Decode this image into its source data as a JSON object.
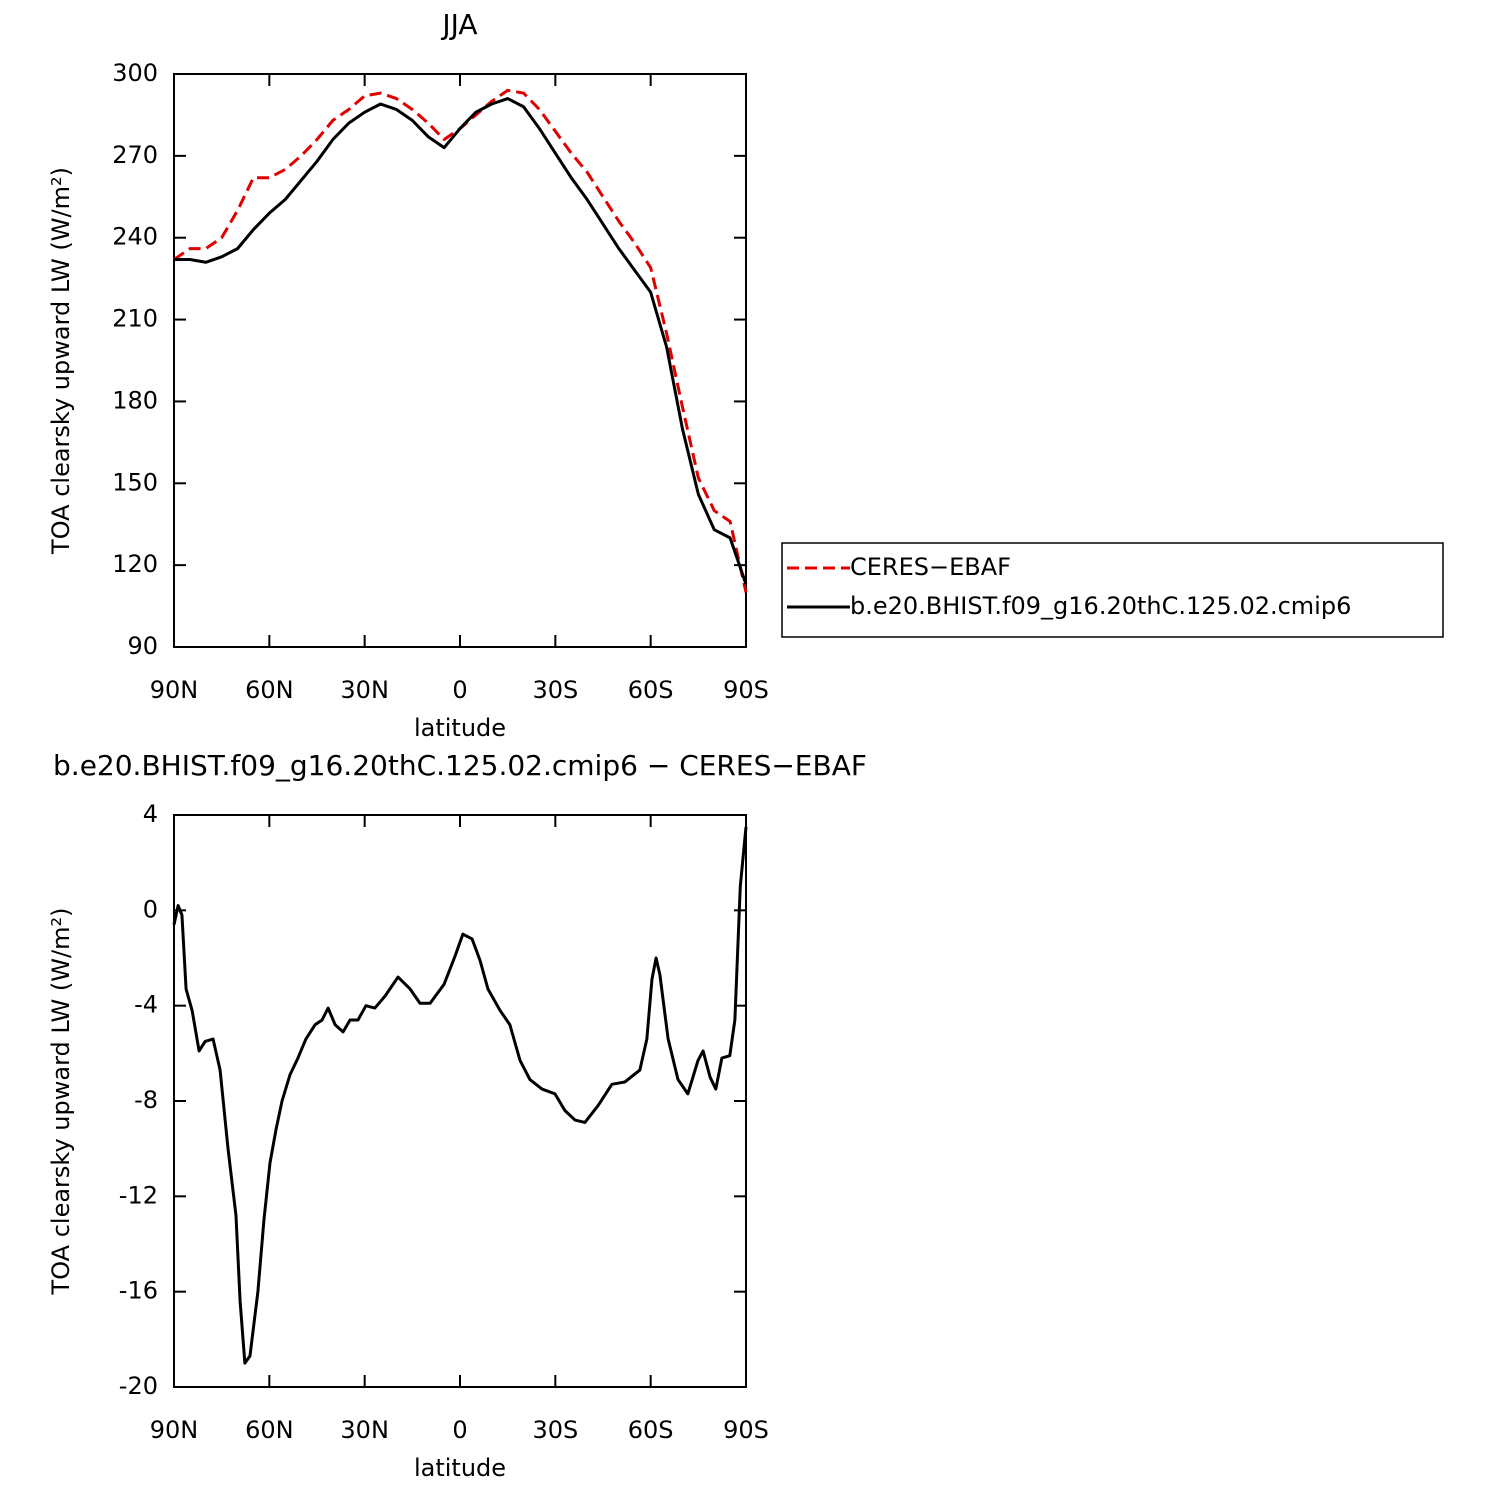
{
  "chart_data": [
    {
      "type": "line",
      "title": "JJA",
      "xlabel": "latitude",
      "ylabel": "TOA clearsky upward LW (W/m²)",
      "x": [
        90,
        85,
        80,
        75,
        70,
        65,
        60,
        55,
        50,
        45,
        40,
        35,
        30,
        25,
        20,
        15,
        10,
        5,
        0,
        -5,
        -10,
        -15,
        -20,
        -25,
        -30,
        -35,
        -40,
        -45,
        -50,
        -55,
        -60,
        -65,
        -70,
        -75,
        -80,
        -85,
        -90
      ],
      "series": [
        {
          "name": "CERES−EBAF",
          "color": "#e00000",
          "dash": true,
          "values": [
            232,
            236,
            236,
            240,
            250,
            262,
            262,
            265,
            270,
            276,
            283,
            287,
            292,
            293,
            291,
            287,
            282,
            276,
            280,
            285,
            290,
            294,
            293,
            287,
            279,
            271,
            264,
            255,
            246,
            238,
            229,
            205,
            178,
            152,
            140,
            136,
            110
          ]
        },
        {
          "name": "b.e20.BHIST.f09_g16.20thC.125.02.cmip6",
          "color": "#000000",
          "dash": false,
          "values": [
            232,
            232,
            231,
            233,
            236,
            243,
            249,
            254,
            261,
            268,
            276,
            282,
            286,
            289,
            287,
            283,
            277,
            273,
            280,
            286,
            289,
            291,
            288,
            280,
            271,
            262,
            254,
            245,
            236,
            228,
            220,
            200,
            170,
            146,
            133,
            130,
            113
          ]
        }
      ],
      "xlim": [
        90,
        -90
      ],
      "xticks": [
        {
          "value": 90,
          "label": "90N"
        },
        {
          "value": 60,
          "label": "60N"
        },
        {
          "value": 30,
          "label": "30N"
        },
        0,
        {
          "value": -30,
          "label": "30S"
        },
        {
          "value": -60,
          "label": "60S"
        },
        {
          "value": -90,
          "label": "90S"
        }
      ],
      "ylim": [
        90,
        300
      ],
      "yticks": [
        90,
        120,
        150,
        180,
        210,
        240,
        270,
        300
      ],
      "legend": "right"
    },
    {
      "type": "line",
      "title": "b.e20.BHIST.f09_g16.20thC.125.02.cmip6 − CERES−EBAF",
      "xlabel": "latitude",
      "ylabel": "TOA clearsky upward LW (W/m²)",
      "x": [
        90,
        88.7,
        87.5,
        86.2,
        84.3,
        82.1,
        80.2,
        77.7,
        75.5,
        73,
        70.5,
        69.2,
        67.7,
        66.1,
        63.6,
        61.7,
        59.8,
        57.9,
        56,
        53.5,
        51,
        48.5,
        45.6,
        43.4,
        41.5,
        39.3,
        36.8,
        34.6,
        32.1,
        29.6,
        26.8,
        23.6,
        19.5,
        15.7,
        12.6,
        9.4,
        5,
        1.5,
        -0.9,
        -3.8,
        -6.3,
        -8.8,
        -12.6,
        -15.7,
        -18.9,
        -22,
        -25.8,
        -29.9,
        -33,
        -36.2,
        -39.3,
        -43.4,
        -47.8,
        -51.9,
        -56.6,
        -58.8,
        -60.4,
        -61.7,
        -62.9,
        -65.5,
        -68.6,
        -71.7,
        -74.9,
        -76.5,
        -78.7,
        -80.5,
        -82.4,
        -84.9,
        -86.5,
        -88.2,
        -90
      ],
      "series": [
        {
          "color": "#000000",
          "dash": false,
          "values": [
            -0.6,
            0.2,
            -0.2,
            -3.3,
            -4.2,
            -5.9,
            -5.5,
            -5.4,
            -6.7,
            -10,
            -12.8,
            -16.4,
            -19,
            -18.7,
            -16,
            -13,
            -10.6,
            -9.2,
            -8,
            -6.9,
            -6.2,
            -5.4,
            -4.8,
            -4.6,
            -4.1,
            -4.8,
            -5.1,
            -4.6,
            -4.6,
            -4,
            -4.1,
            -3.6,
            -2.8,
            -3.3,
            -3.9,
            -3.9,
            -3.1,
            -1.9,
            -1,
            -1.2,
            -2.1,
            -3.3,
            -4.2,
            -4.8,
            -6.3,
            -7.1,
            -7.5,
            -7.7,
            -8.4,
            -8.8,
            -8.9,
            -8.2,
            -7.3,
            -7.2,
            -6.7,
            -5.4,
            -2.9,
            -2,
            -2.7,
            -5.4,
            -7.1,
            -7.7,
            -6.3,
            -5.9,
            -7,
            -7.5,
            -6.2,
            -6.1,
            -4.6,
            1,
            3.5
          ]
        }
      ],
      "xlim": [
        90,
        -90
      ],
      "xticks": [
        {
          "value": 90,
          "label": "90N"
        },
        {
          "value": 60,
          "label": "60N"
        },
        {
          "value": 30,
          "label": "30N"
        },
        0,
        {
          "value": -30,
          "label": "30S"
        },
        {
          "value": -60,
          "label": "60S"
        },
        {
          "value": -90,
          "label": "90S"
        }
      ],
      "ylim": [
        -20,
        4
      ],
      "yticks": [
        -20,
        -16,
        -12,
        -8,
        -4,
        0,
        4
      ]
    }
  ]
}
